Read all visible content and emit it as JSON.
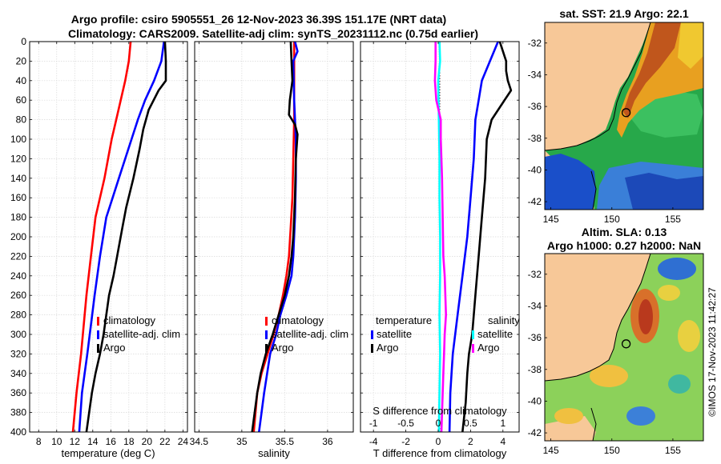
{
  "title": {
    "line1": "Argo profile: csiro 5905551_26 12-Nov-2023 36.39S 151.17E (NRT data)",
    "line2": "Climatology: CARS2009. Satellite-adj clim: synTS_20231112.nc (0.75d earlier)"
  },
  "colors": {
    "climatology": "#ff0000",
    "satellite": "#0000ff",
    "argo": "#000000",
    "s_satellite": "#00ffff",
    "s_argo": "#ff00ff",
    "land": "#f7c898",
    "coast": "#000000"
  },
  "chart_data": [
    {
      "type": "line",
      "name": "temperature-profile",
      "xlabel": "temperature (deg C)",
      "ylabel": "",
      "xlim": [
        7,
        24.5
      ],
      "ylim": [
        0,
        400
      ],
      "y_reversed": true,
      "grid": true,
      "xticks": [
        8,
        10,
        12,
        14,
        16,
        18,
        20,
        22,
        24
      ],
      "yticks": [
        0,
        20,
        40,
        60,
        80,
        100,
        120,
        140,
        160,
        180,
        200,
        220,
        240,
        260,
        280,
        300,
        320,
        340,
        360,
        380,
        400
      ],
      "legend": [
        "climatology",
        "satellite-adj. clim",
        "Argo"
      ],
      "legend_position": "lower-center",
      "series": [
        {
          "name": "climatology",
          "color": "#ff0000",
          "x": [
            18.2,
            18.0,
            17.6,
            17.1,
            16.6,
            16.1,
            15.7,
            15.3,
            14.8,
            14.3,
            13.8,
            13.3,
            12.7,
            12.2,
            11.8
          ],
          "depth": [
            0,
            20,
            40,
            60,
            80,
            100,
            120,
            140,
            160,
            180,
            220,
            260,
            320,
            360,
            400
          ]
        },
        {
          "name": "satellite-adj. clim",
          "color": "#0000ff",
          "x": [
            21.9,
            21.6,
            20.8,
            19.8,
            19.0,
            18.3,
            17.6,
            16.9,
            16.2,
            15.5,
            14.8,
            14.2,
            13.4,
            12.8,
            12.5
          ],
          "depth": [
            0,
            20,
            40,
            60,
            80,
            100,
            120,
            140,
            160,
            180,
            220,
            260,
            320,
            360,
            400
          ]
        },
        {
          "name": "Argo",
          "color": "#000000",
          "x": [
            22.0,
            22.1,
            22.1,
            21.3,
            20.2,
            19.6,
            19.2,
            18.5,
            17.7,
            17.3,
            16.7,
            16.3,
            15.8,
            15.5,
            15.2,
            14.8,
            14.3,
            13.9,
            13.6,
            13.3
          ],
          "depth": [
            0,
            20,
            40,
            50,
            70,
            90,
            110,
            140,
            170,
            190,
            220,
            240,
            260,
            280,
            300,
            320,
            340,
            360,
            380,
            400
          ]
        }
      ]
    },
    {
      "type": "line",
      "name": "salinity-profile",
      "xlabel": "salinity",
      "ylabel": "",
      "xlim": [
        34.45,
        36.3
      ],
      "ylim": [
        0,
        400
      ],
      "y_reversed": true,
      "grid": true,
      "xticks": [
        34.5,
        35,
        35.5,
        36
      ],
      "legend": [
        "climatology",
        "satellite-adj. clim",
        "Argo"
      ],
      "legend_position": "lower-right",
      "series": [
        {
          "name": "climatology",
          "color": "#ff0000",
          "x": [
            35.61,
            35.61,
            35.61,
            35.6,
            35.59,
            35.57,
            35.55,
            35.52,
            35.48,
            35.43,
            35.37,
            35.3,
            35.23,
            35.18,
            35.14
          ],
          "depth": [
            0,
            40,
            80,
            120,
            160,
            190,
            220,
            240,
            260,
            280,
            300,
            320,
            340,
            360,
            400
          ]
        },
        {
          "name": "satellite-adj. clim",
          "color": "#0000ff",
          "x": [
            35.62,
            35.65,
            35.6,
            35.61,
            35.63,
            35.63,
            35.62,
            35.6,
            35.58,
            35.52,
            35.45,
            35.4,
            35.33,
            35.26,
            35.2
          ],
          "depth": [
            0,
            10,
            20,
            60,
            100,
            140,
            180,
            220,
            240,
            260,
            280,
            300,
            320,
            360,
            400
          ]
        },
        {
          "name": "Argo",
          "color": "#000000",
          "x": [
            35.57,
            35.58,
            35.59,
            35.56,
            35.55,
            35.62,
            35.65,
            35.63,
            35.62,
            35.6,
            35.58,
            35.55,
            35.5,
            35.43,
            35.36,
            35.28,
            35.22,
            35.18,
            35.15,
            35.12
          ],
          "depth": [
            0,
            20,
            40,
            60,
            75,
            85,
            95,
            120,
            160,
            200,
            220,
            240,
            260,
            280,
            300,
            320,
            340,
            360,
            380,
            400
          ]
        }
      ]
    },
    {
      "type": "line",
      "name": "difference-profile",
      "xlabel": "T difference from climatology",
      "x2label": "S difference from climatology",
      "ylabel": "",
      "xlim": [
        -4.8,
        5.0
      ],
      "x2lim": [
        -1.2,
        1.25
      ],
      "ylim": [
        0,
        400
      ],
      "y_reversed": true,
      "grid": true,
      "xticks": [
        -4,
        -2,
        0,
        2,
        4
      ],
      "x2ticks": [
        -1,
        -0.5,
        0,
        0.5,
        1
      ],
      "x2ticklabels": [
        "-1",
        "-0.5",
        "0",
        "0.5",
        "1"
      ],
      "legend_temperature": [
        "temperature",
        "satellite",
        "Argo"
      ],
      "legend_salinity": [
        "salinity",
        "satellite",
        "Argo"
      ],
      "series": [
        {
          "name": "T satellite",
          "axis": "T",
          "color": "#0000ff",
          "x": [
            3.7,
            3.2,
            2.7,
            2.5,
            2.3,
            2.2,
            2.0,
            1.8,
            1.5,
            1.2,
            0.9,
            0.75,
            0.7
          ],
          "depth": [
            0,
            20,
            40,
            60,
            80,
            120,
            160,
            200,
            240,
            280,
            320,
            360,
            400
          ]
        },
        {
          "name": "T Argo",
          "axis": "T",
          "color": "#000000",
          "x": [
            3.8,
            4.0,
            4.2,
            4.2,
            4.3,
            4.5,
            4.1,
            3.3,
            3.0,
            2.9,
            2.7,
            2.5,
            2.3,
            2.1,
            1.9,
            1.8,
            1.7,
            1.5
          ],
          "depth": [
            0,
            10,
            20,
            30,
            40,
            50,
            60,
            80,
            100,
            140,
            180,
            220,
            260,
            300,
            320,
            340,
            370,
            400
          ]
        },
        {
          "name": "S satellite",
          "axis": "S",
          "color": "#00ffff",
          "x": [
            0.02,
            0.03,
            0.0,
            0.01,
            0.02,
            0.02,
            0.03,
            0.03,
            0.02,
            0.03,
            0.02,
            0.01
          ],
          "depth": [
            0,
            20,
            40,
            80,
            120,
            160,
            200,
            240,
            280,
            320,
            360,
            400
          ]
        },
        {
          "name": "S Argo",
          "axis": "S",
          "color": "#ff00ff",
          "x": [
            -0.04,
            -0.04,
            -0.05,
            -0.03,
            0.04,
            0.04,
            0.06,
            0.07,
            0.08,
            0.1,
            0.11,
            0.12,
            0.1,
            0.09,
            0.08,
            0.07,
            0.06,
            0.05
          ],
          "depth": [
            0,
            20,
            40,
            60,
            80,
            100,
            140,
            180,
            220,
            240,
            260,
            280,
            300,
            320,
            340,
            360,
            380,
            400
          ]
        }
      ]
    },
    {
      "type": "heatmap",
      "name": "sst-map",
      "title": "sat. SST: 21.9 Argo: 22.1",
      "xlim": [
        144.5,
        157.5
      ],
      "ylim": [
        -42.5,
        -30.7
      ],
      "xticks": [
        145,
        150,
        155
      ],
      "yticks": [
        -32,
        -34,
        -36,
        -38,
        -40,
        -42
      ],
      "marker": {
        "lon": 151.17,
        "lat": -36.39
      }
    },
    {
      "type": "heatmap",
      "name": "sla-map",
      "title_line1": "Altim. SLA: 0.13",
      "title_line2": "Argo h1000: 0.27 h2000: NaN",
      "xlim": [
        144.5,
        157.5
      ],
      "ylim": [
        -42.5,
        -30.7
      ],
      "xticks": [
        145,
        150,
        155
      ],
      "yticks": [
        -32,
        -34,
        -36,
        -38,
        -40,
        -42
      ],
      "marker": {
        "lon": 151.17,
        "lat": -36.39
      }
    }
  ],
  "credit": "©IMOS 17-Nov-2023 11:42:27"
}
